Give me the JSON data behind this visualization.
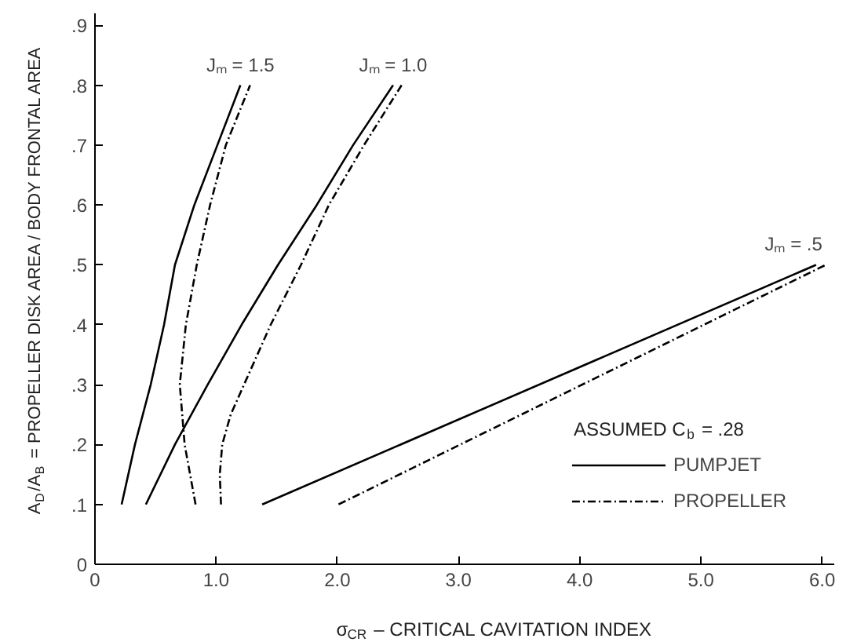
{
  "chart_data": {
    "type": "line",
    "xlabel": "σ$_{CR}$ – CRITICAL CAVITATION INDEX",
    "ylabel": "A$_{D}$/A$_{B}$ = PROPELLER DISK AREA / BODY FRONTAL AREA",
    "legend_title": "ASSUMED C$_{b}$ = .28",
    "legend": "bottom right",
    "grid": false,
    "marker": "none",
    "xlim": [
      0,
      6.1
    ],
    "ylim": [
      0,
      0.92
    ],
    "xticks": [
      0,
      {
        "value": 1,
        "label": "1.0"
      },
      {
        "value": 2,
        "label": "2.0"
      },
      {
        "value": 3,
        "label": "3.0"
      },
      {
        "value": 4,
        "label": "4.0"
      },
      {
        "value": 5,
        "label": "5.0"
      },
      {
        "value": 6,
        "label": "6.0"
      }
    ],
    "yticks": [
      0,
      {
        "value": 0.1,
        "label": ".1"
      },
      {
        "value": 0.2,
        "label": ".2"
      },
      {
        "value": 0.3,
        "label": ".3"
      },
      {
        "value": 0.4,
        "label": ".4"
      },
      {
        "value": 0.5,
        "label": ".5"
      },
      {
        "value": 0.6,
        "label": ".6"
      },
      {
        "value": 0.7,
        "label": ".7"
      },
      {
        "value": 0.8,
        "label": ".8"
      },
      {
        "value": 0.9,
        "label": ".9"
      }
    ],
    "series": [
      {
        "name": "PUMPJET",
        "color": "#000000",
        "line_style": "solid",
        "x": [
          0.22,
          0.33,
          0.46,
          0.57,
          0.66,
          0.82,
          1.01,
          1.2
        ],
        "values": [
          0.1,
          0.2,
          0.3,
          0.4,
          0.5,
          0.6,
          0.7,
          0.8
        ]
      },
      {
        "name": "PROPELLER",
        "color": "#000000",
        "line_style": "dashdot",
        "x": [
          0.83,
          0.74,
          0.7,
          0.75,
          0.84,
          0.95,
          1.08,
          1.28
        ],
        "values": [
          0.1,
          0.2,
          0.3,
          0.4,
          0.5,
          0.6,
          0.7,
          0.8
        ]
      },
      {
        "color": "#000000",
        "line_style": "solid",
        "x": [
          0.42,
          0.66,
          0.93,
          1.21,
          1.51,
          1.83,
          2.13,
          2.46
        ],
        "values": [
          0.1,
          0.2,
          0.3,
          0.4,
          0.5,
          0.6,
          0.7,
          0.8
        ]
      },
      {
        "color": "#000000",
        "line_style": "dashdot",
        "x": [
          1.04,
          1.03,
          1.05,
          1.12,
          1.23,
          1.45,
          1.7,
          1.93,
          2.22,
          2.53
        ],
        "values": [
          0.1,
          0.15,
          0.2,
          0.25,
          0.3,
          0.4,
          0.5,
          0.6,
          0.7,
          0.8
        ]
      },
      {
        "color": "#000000",
        "line_style": "solid",
        "x": [
          1.38,
          5.95
        ],
        "values": [
          0.1,
          0.5
        ]
      },
      {
        "color": "#000000",
        "line_style": "dashdot",
        "x": [
          2.01,
          6.03
        ],
        "values": [
          0.1,
          0.5
        ]
      }
    ],
    "annotations": [
      {
        "text": "Jₘ = 1.5",
        "x": 1.2,
        "y": 0.8
      },
      {
        "text": "Jₘ = 1.0",
        "x": 2.46,
        "y": 0.8
      },
      {
        "text": "Jₘ = .5",
        "x": 5.95,
        "y": 0.5
      }
    ]
  }
}
